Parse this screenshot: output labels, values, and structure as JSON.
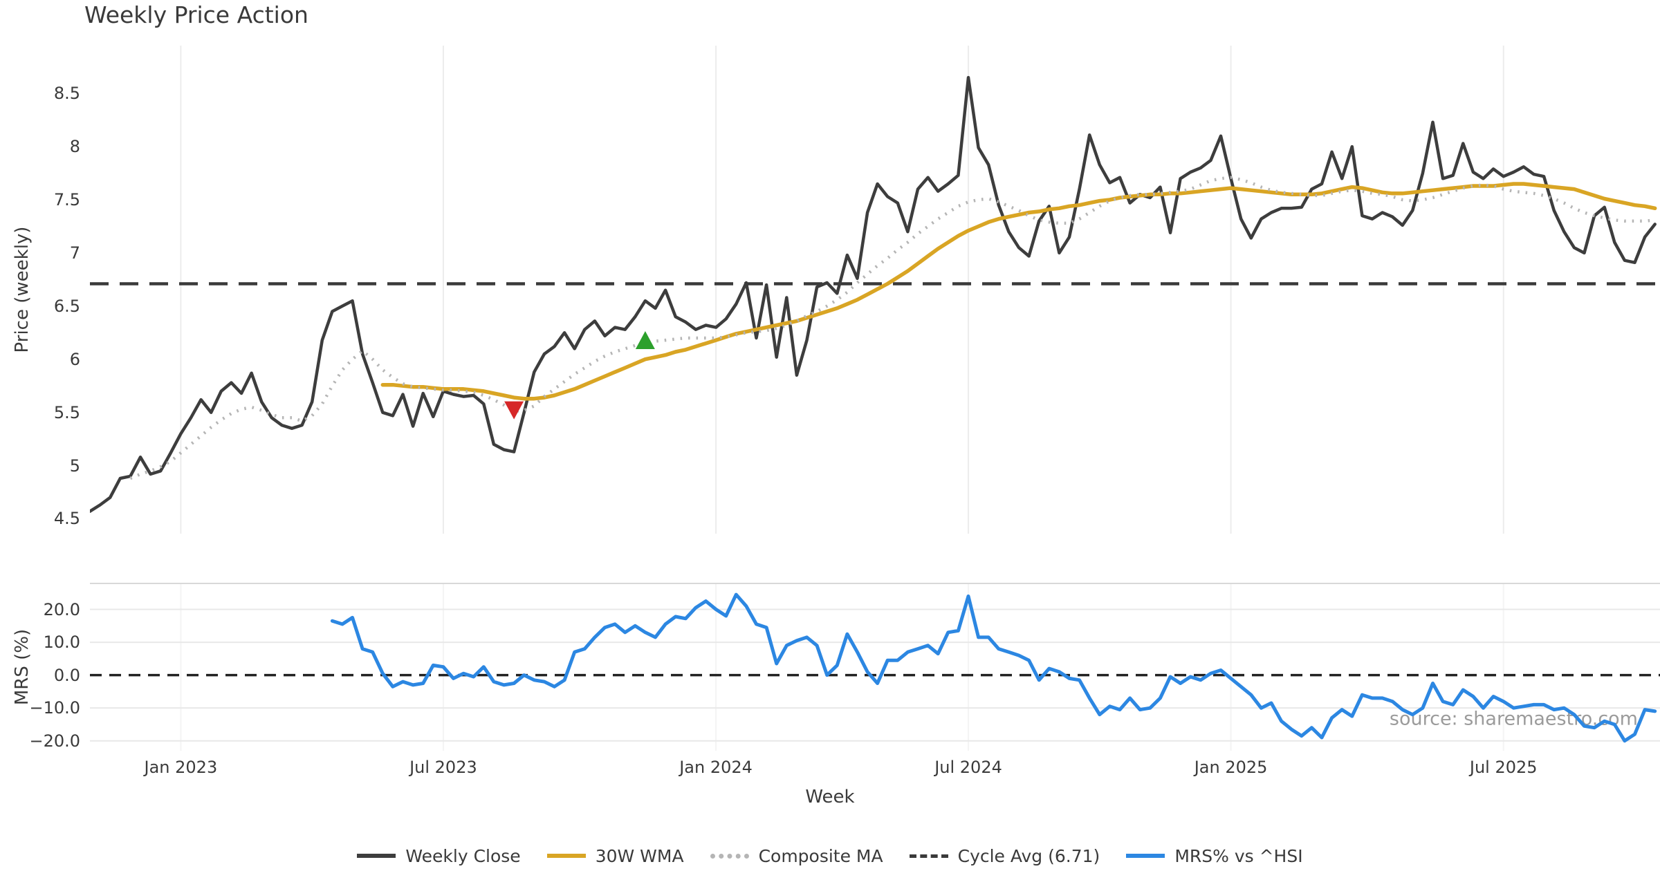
{
  "title": "Weekly Price Action",
  "watermark": "source: sharemaestro.com",
  "colors": {
    "close": "#3d3d3d",
    "wma": "#d9a524",
    "composite": "#b5b5b5",
    "cycle_avg": "#3a3a3a",
    "mrs": "#2c87e2",
    "sell_marker": "#d62728",
    "buy_marker": "#2ca02c",
    "grid": "#ececec",
    "grid_soft": "#e8e8e8",
    "spine": "#d8d8d8",
    "watermark": "#9b9b9b",
    "text": "#3a3a3a"
  },
  "axes": {
    "price": {
      "label": "Price (weekly)",
      "ticks": [
        {
          "v": 4.5,
          "label": "4.5"
        },
        {
          "v": 5,
          "label": "5"
        },
        {
          "v": 5.5,
          "label": "5.5"
        },
        {
          "v": 6,
          "label": "6"
        },
        {
          "v": 6.5,
          "label": "6.5"
        },
        {
          "v": 7,
          "label": "7"
        },
        {
          "v": 7.5,
          "label": "7.5"
        },
        {
          "v": 8,
          "label": "8"
        },
        {
          "v": 8.5,
          "label": "8.5"
        }
      ]
    },
    "mrs": {
      "label": "MRS (%)",
      "ticks": [
        {
          "v": 20,
          "label": "20.0"
        },
        {
          "v": 10,
          "label": "10.0"
        },
        {
          "v": 0,
          "label": "0.0"
        },
        {
          "v": -10,
          "label": "−10.0"
        },
        {
          "v": -20,
          "label": "−20.0"
        }
      ]
    },
    "x": {
      "label": "Week",
      "ticks": [
        {
          "w": 9,
          "label": "Jan 2023"
        },
        {
          "w": 35,
          "label": "Jul 2023"
        },
        {
          "w": 62,
          "label": "Jan 2024"
        },
        {
          "w": 87,
          "label": "Jul 2024"
        },
        {
          "w": 113,
          "label": "Jan 2025"
        },
        {
          "w": 140,
          "label": "Jul 2025"
        }
      ]
    }
  },
  "legend": [
    {
      "label": "Weekly Close",
      "style": "solid",
      "color": "#3d3d3d"
    },
    {
      "label": "30W WMA",
      "style": "solid",
      "color": "#d9a524"
    },
    {
      "label": "Composite MA",
      "style": "dotted",
      "color": "#b5b5b5"
    },
    {
      "label": "Cycle Avg (6.71)",
      "style": "dashed",
      "color": "#3a3a3a"
    },
    {
      "label": "MRS% vs ^HSI",
      "style": "solid",
      "color": "#2c87e2"
    }
  ],
  "chart_data": {
    "type": "line",
    "title": "Weekly Price Action",
    "xlabel": "Week",
    "x_unit": "week_index",
    "xlim": [
      0,
      155.5
    ],
    "panels": [
      {
        "id": "price",
        "ylabel": "Price (weekly)",
        "ylim": [
          4.36,
          8.95
        ],
        "grid": "vertical",
        "ref_line": {
          "name": "Cycle Avg",
          "value": 6.71,
          "dash": "27 16",
          "width": 4.5
        }
      },
      {
        "id": "mrs",
        "ylabel": "MRS (%)",
        "ylim": [
          -23,
          28.1
        ],
        "grid": "horizontal",
        "hgrid_values": [
          20,
          10,
          -10,
          -20
        ],
        "ref_line": {
          "name": "zero",
          "value": 0,
          "dash": "17 11",
          "width": 3.5
        }
      }
    ],
    "series": [
      {
        "id": "weekly_close",
        "name": "Weekly Close",
        "panel": "price",
        "color": "#3d3d3d",
        "width": 4.5,
        "dash": null,
        "start_week": 0,
        "values": [
          4.57,
          4.63,
          4.7,
          4.88,
          4.9,
          5.08,
          4.92,
          4.95,
          5.12,
          5.3,
          5.45,
          5.62,
          5.5,
          5.7,
          5.78,
          5.68,
          5.87,
          5.6,
          5.45,
          5.38,
          5.35,
          5.38,
          5.6,
          6.18,
          6.45,
          6.5,
          6.55,
          6.05,
          5.78,
          5.5,
          5.47,
          5.67,
          5.37,
          5.68,
          5.46,
          5.7,
          5.67,
          5.65,
          5.66,
          5.58,
          5.2,
          5.15,
          5.13,
          5.5,
          5.88,
          6.05,
          6.12,
          6.25,
          6.1,
          6.28,
          6.36,
          6.22,
          6.3,
          6.28,
          6.4,
          6.55,
          6.48,
          6.65,
          6.4,
          6.35,
          6.28,
          6.32,
          6.3,
          6.38,
          6.52,
          6.72,
          6.2,
          6.7,
          6.02,
          6.58,
          5.85,
          6.18,
          6.68,
          6.72,
          6.62,
          6.98,
          6.76,
          7.38,
          7.65,
          7.53,
          7.47,
          7.2,
          7.6,
          7.71,
          7.58,
          7.65,
          7.73,
          8.65,
          7.99,
          7.83,
          7.45,
          7.2,
          7.05,
          6.97,
          7.3,
          7.44,
          7.0,
          7.15,
          7.6,
          8.11,
          7.83,
          7.66,
          7.71,
          7.47,
          7.55,
          7.52,
          7.62,
          7.19,
          7.7,
          7.76,
          7.8,
          7.87,
          8.1,
          7.7,
          7.32,
          7.14,
          7.32,
          7.38,
          7.42,
          7.42,
          7.43,
          7.6,
          7.65,
          7.95,
          7.7,
          8.0,
          7.35,
          7.32,
          7.38,
          7.34,
          7.26,
          7.4,
          7.75,
          8.23,
          7.7,
          7.73,
          8.03,
          7.76,
          7.7,
          7.79,
          7.72,
          7.76,
          7.81,
          7.74,
          7.72,
          7.4,
          7.2,
          7.05,
          7.0,
          7.35,
          7.43,
          7.1,
          6.93,
          6.91,
          7.15,
          7.27
        ]
      },
      {
        "id": "wma_30w",
        "name": "30W WMA",
        "panel": "price",
        "color": "#d9a524",
        "width": 5.5,
        "dash": null,
        "start_week": 29,
        "values": [
          5.76,
          5.76,
          5.75,
          5.74,
          5.74,
          5.73,
          5.72,
          5.72,
          5.72,
          5.71,
          5.7,
          5.68,
          5.66,
          5.64,
          5.63,
          5.63,
          5.64,
          5.66,
          5.69,
          5.72,
          5.76,
          5.8,
          5.84,
          5.88,
          5.92,
          5.96,
          6.0,
          6.02,
          6.04,
          6.07,
          6.09,
          6.12,
          6.15,
          6.18,
          6.21,
          6.24,
          6.26,
          6.28,
          6.3,
          6.32,
          6.34,
          6.36,
          6.39,
          6.42,
          6.45,
          6.48,
          6.52,
          6.56,
          6.61,
          6.66,
          6.71,
          6.77,
          6.83,
          6.9,
          6.97,
          7.04,
          7.1,
          7.16,
          7.21,
          7.25,
          7.29,
          7.32,
          7.34,
          7.36,
          7.38,
          7.39,
          7.41,
          7.42,
          7.44,
          7.45,
          7.47,
          7.49,
          7.5,
          7.52,
          7.53,
          7.54,
          7.55,
          7.55,
          7.56,
          7.56,
          7.57,
          7.58,
          7.59,
          7.6,
          7.61,
          7.6,
          7.59,
          7.58,
          7.57,
          7.56,
          7.55,
          7.55,
          7.55,
          7.56,
          7.58,
          7.6,
          7.62,
          7.61,
          7.59,
          7.57,
          7.56,
          7.56,
          7.57,
          7.58,
          7.59,
          7.6,
          7.61,
          7.62,
          7.63,
          7.63,
          7.63,
          7.64,
          7.65,
          7.65,
          7.64,
          7.63,
          7.62,
          7.61,
          7.6,
          7.57,
          7.54,
          7.51,
          7.49,
          7.47,
          7.45,
          7.44,
          7.42
        ]
      },
      {
        "id": "composite_ma",
        "name": "Composite MA",
        "panel": "price",
        "color": "#b5b5b5",
        "width": 4.5,
        "dash": "2.5 9",
        "start_week": 4,
        "values": [
          4.88,
          4.92,
          4.95,
          4.99,
          5.04,
          5.12,
          5.2,
          5.28,
          5.36,
          5.43,
          5.49,
          5.53,
          5.55,
          5.52,
          5.48,
          5.45,
          5.45,
          5.42,
          5.47,
          5.58,
          5.75,
          5.9,
          6.0,
          6.08,
          6.0,
          5.9,
          5.83,
          5.77,
          5.74,
          5.73,
          5.72,
          5.71,
          5.71,
          5.7,
          5.69,
          5.66,
          5.62,
          5.57,
          5.51,
          5.52,
          5.56,
          5.65,
          5.72,
          5.79,
          5.86,
          5.92,
          5.98,
          6.03,
          6.07,
          6.1,
          6.13,
          6.15,
          6.17,
          6.18,
          6.19,
          6.2,
          6.2,
          6.2,
          6.2,
          6.21,
          6.23,
          6.25,
          6.26,
          6.27,
          6.29,
          6.32,
          6.36,
          6.41,
          6.45,
          6.5,
          6.56,
          6.63,
          6.72,
          6.8,
          6.88,
          6.95,
          7.03,
          7.1,
          7.18,
          7.25,
          7.32,
          7.38,
          7.44,
          7.48,
          7.5,
          7.51,
          7.48,
          7.44,
          7.4,
          7.35,
          7.31,
          7.29,
          7.28,
          7.28,
          7.32,
          7.38,
          7.44,
          7.49,
          7.52,
          7.54,
          7.55,
          7.55,
          7.56,
          7.57,
          7.58,
          7.6,
          7.64,
          7.68,
          7.7,
          7.71,
          7.69,
          7.66,
          7.62,
          7.59,
          7.57,
          7.56,
          7.55,
          7.54,
          7.54,
          7.56,
          7.58,
          7.59,
          7.58,
          7.56,
          7.55,
          7.53,
          7.5,
          7.49,
          7.5,
          7.52,
          7.55,
          7.58,
          7.61,
          7.63,
          7.64,
          7.63,
          7.6,
          7.58,
          7.57,
          7.56,
          7.54,
          7.51,
          7.47,
          7.42,
          7.38,
          7.35,
          7.33,
          7.31,
          7.3,
          7.3,
          7.3,
          7.31
        ]
      },
      {
        "id": "mrs_pct",
        "name": "MRS% vs ^HSI",
        "panel": "mrs",
        "color": "#2c87e2",
        "width": 5,
        "dash": null,
        "start_week": 24,
        "values": [
          16.5,
          15.5,
          17.5,
          8.0,
          7.0,
          0.5,
          -3.5,
          -2.0,
          -3.0,
          -2.5,
          3.0,
          2.5,
          -1.0,
          0.5,
          -0.5,
          2.5,
          -2.0,
          -3.0,
          -2.5,
          0.0,
          -1.5,
          -2.0,
          -3.5,
          -1.5,
          7.0,
          8.0,
          11.5,
          14.5,
          15.5,
          13.0,
          15.0,
          13.0,
          11.5,
          15.5,
          17.8,
          17.2,
          20.5,
          22.5,
          20.0,
          18.0,
          24.5,
          21.0,
          15.5,
          14.5,
          3.5,
          9.0,
          10.5,
          11.5,
          9.0,
          0.0,
          3.0,
          12.5,
          7.0,
          1.0,
          -2.5,
          4.5,
          4.5,
          7.0,
          8.0,
          9.0,
          6.5,
          13.0,
          13.5,
          24.0,
          11.5,
          11.5,
          8.0,
          7.0,
          6.0,
          4.5,
          -1.5,
          2.0,
          1.0,
          -1.0,
          -1.5,
          -7.0,
          -12.0,
          -9.5,
          -10.5,
          -7.0,
          -10.5,
          -10.0,
          -7.0,
          -0.5,
          -2.5,
          -0.5,
          -1.5,
          0.5,
          1.5,
          -1.0,
          -3.5,
          -6.0,
          -10.0,
          -8.5,
          -14.0,
          -16.5,
          -18.5,
          -16.0,
          -19.0,
          -13.0,
          -10.5,
          -12.5,
          -6.0,
          -7.0,
          -7.0,
          -8.0,
          -10.5,
          -12.0,
          -10.0,
          -2.5,
          -8.0,
          -9.0,
          -4.5,
          -6.5,
          -10.0,
          -6.5,
          -8.0,
          -10.0,
          -9.5,
          -9.0,
          -9.0,
          -10.5,
          -10.0,
          -12.0,
          -15.5,
          -16.0,
          -14.0,
          -15.0,
          -20.0,
          -18.0,
          -10.5,
          -11.0
        ]
      }
    ],
    "markers": [
      {
        "id": "sell-signal",
        "shape": "triangle-down",
        "color": "#d62728",
        "week": 42,
        "value": 5.52,
        "panel": "price"
      },
      {
        "id": "buy-signal",
        "shape": "triangle-up",
        "color": "#2ca02c",
        "week": 55,
        "value": 6.18,
        "panel": "price"
      }
    ],
    "cycle_avg": 6.71,
    "legend_position": "bottom-center"
  }
}
